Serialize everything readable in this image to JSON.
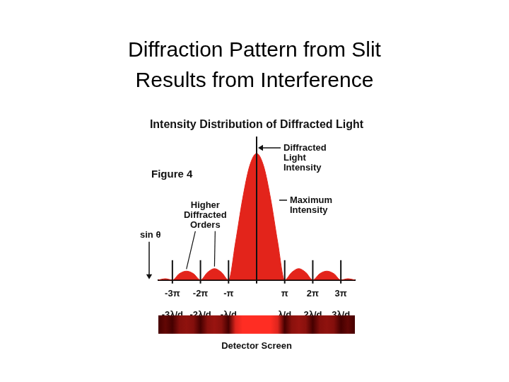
{
  "slide_title": [
    "Diffraction Pattern from Slit",
    "Results from Interference"
  ],
  "chart_data": {
    "type": "area",
    "title": "Intensity Distribution of Diffracted Light",
    "xlabel": "sin θ",
    "annotations": [
      "Figure 4",
      "Diffracted Light Intensity",
      "Maximum Intensity",
      "Higher Diffracted Orders",
      "Detector Screen"
    ],
    "x": [
      -3.5,
      -3.25,
      -3,
      -2.75,
      -2.5,
      -2.25,
      -2,
      -1.75,
      -1.5,
      -1.25,
      -1,
      -0.75,
      -0.5,
      -0.25,
      0,
      0.25,
      0.5,
      0.75,
      1,
      1.25,
      1.5,
      1.75,
      2,
      2.25,
      2.5,
      2.75,
      3,
      3.25,
      3.5
    ],
    "values": [
      0,
      0.01,
      0,
      0.05,
      0.07,
      0.05,
      0,
      0.06,
      0.09,
      0.06,
      0,
      0.3,
      0.64,
      0.9,
      1.0,
      0.9,
      0.64,
      0.3,
      0,
      0.06,
      0.09,
      0.06,
      0,
      0.05,
      0.07,
      0.05,
      0,
      0.01,
      0
    ],
    "color": "#e3241b",
    "xlim": [
      -3.5,
      3.5
    ],
    "ylim": [
      0,
      1.1
    ],
    "xticks": [
      {
        "value": -3,
        "label": "-3π"
      },
      {
        "value": -2,
        "label": "-2π"
      },
      {
        "value": -1,
        "label": "-π"
      },
      {
        "value": 1,
        "label": "π"
      },
      {
        "value": 2,
        "label": "2π"
      },
      {
        "value": 3,
        "label": "3π"
      }
    ],
    "x2ticks": [
      {
        "value": -3,
        "label": "-3λ/d"
      },
      {
        "value": -2,
        "label": "-2λ/d"
      },
      {
        "value": -1,
        "label": "-λ/d"
      },
      {
        "value": 1,
        "label": "λ/d"
      },
      {
        "value": 2,
        "label": "2λ/d"
      },
      {
        "value": 3,
        "label": "3λ/d"
      }
    ],
    "grid": false,
    "tick_labels": "x"
  }
}
